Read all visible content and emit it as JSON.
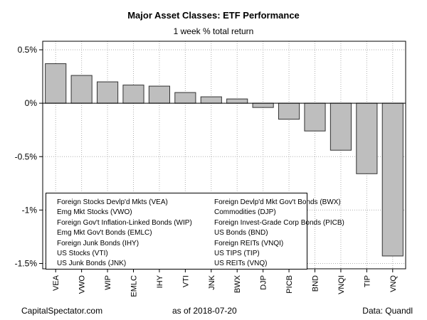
{
  "title": "Major Asset Classes: ETF Performance",
  "subtitle": "1 week % total return",
  "footer": {
    "left": "CapitalSpectator.com",
    "middle": "as of   2018-07-20",
    "right": "Data: Quandl"
  },
  "colors": {
    "bar_fill": "#bebebe",
    "bar_stroke": "#333333",
    "grid": "#b0b0b0",
    "axis": "#000000"
  },
  "legend": {
    "col1": [
      "Foreign Stocks Devlp'd Mkts (VEA)",
      "Emg Mkt Stocks (VWO)",
      "Foreign Gov't Inflation-Linked Bonds (WIP)",
      "Emg Mkt Gov't Bonds (EMLC)",
      "Foreign Junk Bonds (IHY)",
      "US Stocks (VTI)",
      "US Junk Bonds (JNK)"
    ],
    "col2": [
      "Foreign Devlp'd Mkt Gov't Bonds (BWX)",
      "Commodities (DJP)",
      "Foreign Invest-Grade Corp Bonds (PICB)",
      "US Bonds (BND)",
      "Foreign REITs (VNQI)",
      "US TIPS (TIP)",
      "US REITs (VNQ)"
    ]
  },
  "chart_data": {
    "type": "bar",
    "title": "Major Asset Classes: ETF Performance",
    "subtitle": "1 week % total return",
    "xlabel": "",
    "ylabel": "",
    "categories": [
      "VEA",
      "VWO",
      "WIP",
      "EMLC",
      "IHY",
      "VTI",
      "JNK",
      "BWX",
      "DJP",
      "PICB",
      "BND",
      "VNQI",
      "TIP",
      "VNQ"
    ],
    "values": [
      0.37,
      0.26,
      0.2,
      0.17,
      0.16,
      0.1,
      0.06,
      0.04,
      -0.04,
      -0.15,
      -0.26,
      -0.44,
      -0.66,
      -1.43
    ],
    "unit": "%",
    "ylim": [
      -1.55,
      0.58
    ],
    "yticks": [
      0.5,
      0,
      -0.5,
      -1,
      -1.5
    ],
    "ytick_labels": [
      "0.5%",
      "0%",
      "-0.5%",
      "-1%",
      "-1.5%"
    ],
    "grid": true,
    "legend_position": "bottom-left"
  }
}
